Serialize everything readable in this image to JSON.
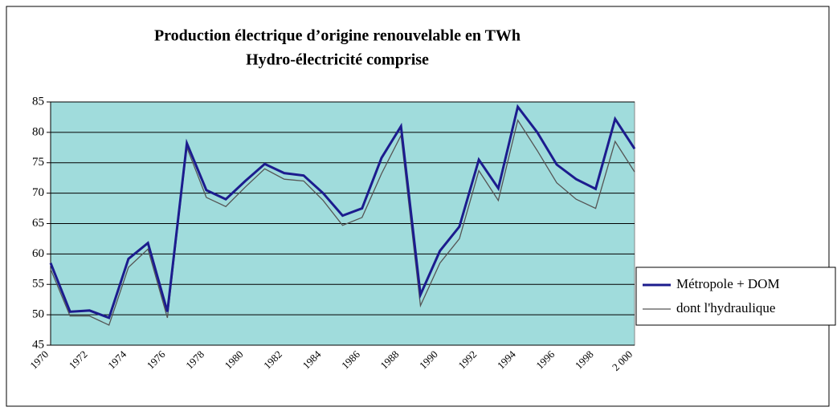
{
  "chart_data": {
    "type": "line",
    "title": [
      "Production électrique d’origine renouvelable en TWh",
      "Hydro-électricité comprise"
    ],
    "categories": [
      "1970",
      null,
      "1972",
      null,
      "1974",
      null,
      "1976",
      null,
      "1978",
      null,
      "1980",
      null,
      "1982",
      null,
      "1984",
      null,
      "1986",
      null,
      "1988",
      null,
      "1990",
      null,
      "1992",
      null,
      "1994",
      null,
      "1996",
      null,
      "1998",
      null,
      "2 000"
    ],
    "series": [
      {
        "name": "Métropole + DOM",
        "color": "#1c1c8e",
        "values": [
          58.5,
          50.5,
          50.7,
          49.5,
          59.2,
          61.8,
          50.5,
          78.2,
          70.5,
          69,
          72,
          74.8,
          73.3,
          72.9,
          70,
          66.3,
          67.5,
          75.8,
          81,
          53.3,
          60.5,
          64.5,
          75.5,
          70.8,
          84.2,
          80,
          74.7,
          72.3,
          70.7,
          82.2,
          77.3
        ]
      },
      {
        "name": "dont l'hydraulique",
        "color": "#555555",
        "values": [
          57.5,
          49.8,
          49.8,
          48.3,
          57.8,
          60.8,
          49.5,
          77.5,
          69.3,
          67.8,
          71,
          74,
          72.3,
          72,
          68.8,
          64.7,
          66,
          73.2,
          79.5,
          51.5,
          58.5,
          62.5,
          73.7,
          68.8,
          82,
          77,
          71.7,
          69,
          67.5,
          78.5,
          73.5
        ]
      }
    ],
    "ylim": [
      45,
      85
    ],
    "yticks": [
      45,
      50,
      55,
      60,
      65,
      70,
      75,
      80,
      85
    ],
    "grid": true,
    "plot_background": "#a0dcdc",
    "legend": "right"
  }
}
